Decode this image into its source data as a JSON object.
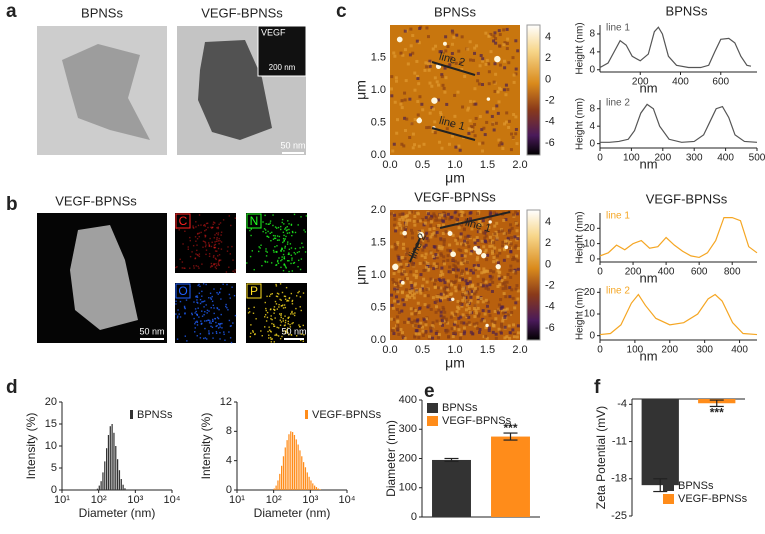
{
  "panel_labels": [
    "a",
    "b",
    "c",
    "d",
    "e",
    "f"
  ],
  "tem": {
    "titles": [
      "BPNSs",
      "VEGF-BPNSs"
    ],
    "inset_label": "VEGF",
    "inset_scale": "200 nm",
    "scale": "50 nm"
  },
  "eds": {
    "title": "VEGF-BPNSs",
    "maps": [
      "C",
      "N",
      "O",
      "P"
    ],
    "scale": "50 nm",
    "map_scale": "50 nm"
  },
  "afm": [
    {
      "title": "BPNSs",
      "xticks": [
        "0.0",
        "0.5",
        "1.0",
        "1.5",
        "2.0"
      ],
      "yticks": [
        "0.0",
        "0.5",
        "1.0",
        "1.5"
      ],
      "colorbar_ticks": [
        "4",
        "2",
        "0",
        "-2",
        "-4",
        "-6"
      ],
      "xlabel": "μm",
      "ylabel": "μm",
      "line_labels": [
        "line 2",
        "line 1"
      ]
    },
    {
      "title": "VEGF-BPNSs",
      "xticks": [
        "0.0",
        "0.5",
        "1.0",
        "1.5",
        "2.0"
      ],
      "yticks": [
        "0.0",
        "0.5",
        "1.0",
        "1.5",
        "2.0"
      ],
      "colorbar_ticks": [
        "4",
        "2",
        "0",
        "-2",
        "-4",
        "-6"
      ],
      "xlabel": "μm",
      "ylabel": "μm",
      "line_labels": [
        "line 1",
        "line 2"
      ]
    }
  ],
  "chart_data": [
    {
      "type": "line",
      "title": "BPNSs",
      "annotation": "line 1",
      "x_label": "nm",
      "y_label": "Height (nm)",
      "x": [
        0,
        40,
        70,
        100,
        130,
        160,
        200,
        240,
        270,
        290,
        310,
        340,
        380,
        440,
        500,
        540,
        570,
        600,
        640,
        670,
        700,
        730,
        750
      ],
      "series": [
        {
          "color": "#555555",
          "values": [
            0.5,
            1.5,
            4,
            6.5,
            5.5,
            3,
            2,
            3.5,
            8.5,
            9.5,
            8,
            3,
            1,
            0.5,
            0.5,
            1,
            4,
            6.8,
            7,
            6,
            3,
            1,
            0.8
          ]
        }
      ],
      "xlim": [
        0,
        780
      ],
      "ylim": [
        -0.5,
        10
      ],
      "xticks": [
        200,
        400,
        600
      ],
      "yticks": [
        0,
        4,
        8
      ]
    },
    {
      "type": "line",
      "annotation": "line 2",
      "x_label": "nm",
      "y_label": "Height (nm)",
      "x": [
        0,
        30,
        60,
        90,
        110,
        130,
        150,
        170,
        190,
        220,
        260,
        300,
        330,
        350,
        370,
        390,
        410,
        430,
        460,
        500
      ],
      "series": [
        {
          "color": "#555555",
          "values": [
            0.3,
            0.3,
            0.5,
            1,
            3,
            7,
            9,
            8,
            4,
            1,
            0.3,
            0.5,
            2,
            5,
            8,
            8.5,
            6,
            2,
            0.5,
            0.3
          ]
        }
      ],
      "xlim": [
        0,
        500
      ],
      "ylim": [
        -1,
        10
      ],
      "xticks": [
        0,
        100,
        200,
        300,
        400,
        500
      ],
      "yticks": [
        0,
        4,
        8
      ]
    },
    {
      "type": "line",
      "title": "VEGF-BPNSs",
      "annotation": "line 1",
      "x_label": "nm",
      "y_label": "Height (nm)",
      "x": [
        0,
        50,
        100,
        150,
        200,
        250,
        300,
        350,
        400,
        450,
        500,
        550,
        600,
        650,
        700,
        750,
        800,
        850,
        900,
        950
      ],
      "series": [
        {
          "color": "#f5a623",
          "values": [
            2,
            4,
            9,
            6,
            10,
            12,
            7,
            8,
            14,
            9,
            5,
            2,
            1,
            4,
            12,
            27,
            27,
            25,
            8,
            4
          ]
        }
      ],
      "xlim": [
        0,
        950
      ],
      "ylim": [
        -2,
        30
      ],
      "xticks": [
        0,
        200,
        400,
        600,
        800
      ],
      "yticks": [
        0,
        10,
        20
      ]
    },
    {
      "type": "line",
      "annotation": "line 2",
      "x_label": "nm",
      "y_label": "Height (nm)",
      "x": [
        0,
        30,
        60,
        90,
        110,
        130,
        160,
        200,
        240,
        280,
        310,
        330,
        350,
        380,
        410,
        450
      ],
      "series": [
        {
          "color": "#f5a623",
          "values": [
            0.5,
            1,
            5,
            15,
            19,
            14,
            8,
            5,
            6,
            10,
            17,
            19,
            16,
            6,
            1,
            0.5
          ]
        }
      ],
      "xlim": [
        0,
        450
      ],
      "ylim": [
        -2,
        22
      ],
      "xticks": [
        0,
        100,
        200,
        300,
        400
      ],
      "yticks": [
        0,
        10,
        20
      ]
    },
    {
      "type": "histogram",
      "x_label": "Diameter (nm)",
      "y_label": "Intensity (%)",
      "log_x": true,
      "bins": [
        89.1,
        100,
        112.2,
        125.9,
        141.3,
        158.5,
        177.8,
        199.5,
        223.9,
        251.2,
        281.8,
        316.2,
        354.8,
        398.1,
        446.7,
        501.2,
        562.3
      ],
      "series": [
        {
          "name": "BPNSs",
          "color": "#333333",
          "values": [
            0.3,
            1,
            2,
            4,
            6.5,
            9.5,
            12.5,
            14.5,
            15,
            13,
            10,
            7,
            4.5,
            2.5,
            1.2,
            0.4
          ]
        }
      ],
      "xlim": [
        10,
        10000
      ],
      "ylim": [
        0,
        20
      ],
      "xticks": [
        {
          "value": 10,
          "label": "10¹"
        },
        {
          "value": 100,
          "label": "10²"
        },
        {
          "value": 1000,
          "label": "10³"
        },
        {
          "value": 10000,
          "label": "10⁴"
        }
      ],
      "yticks": [
        0,
        5,
        10,
        15,
        20
      ]
    },
    {
      "type": "histogram",
      "x_label": "Diameter (nm)",
      "y_label": "Intensity (%)",
      "log_x": true,
      "bins": [
        100,
        112.2,
        125.9,
        141.3,
        158.5,
        177.8,
        199.5,
        223.9,
        251.2,
        281.8,
        316.2,
        354.8,
        398.1,
        446.7,
        501.2,
        562.3,
        631,
        707.9,
        794.3,
        891.3,
        1000,
        1122,
        1259,
        1413,
        1585,
        1778,
        1995
      ],
      "series": [
        {
          "name": "VEGF-BPNSs",
          "color": "#ff8c1a",
          "values": [
            0.2,
            0.6,
            1.3,
            2.2,
            3.3,
            4.6,
            5.8,
            6.8,
            7.6,
            8,
            7.9,
            7.5,
            6.9,
            6.2,
            5.4,
            4.6,
            3.8,
            3.1,
            2.4,
            1.8,
            1.3,
            0.9,
            0.6,
            0.4,
            0.2,
            0.1
          ]
        }
      ],
      "xlim": [
        10,
        10000
      ],
      "ylim": [
        0,
        12
      ],
      "xticks": [
        {
          "value": 10,
          "label": "10¹"
        },
        {
          "value": 100,
          "label": "10²"
        },
        {
          "value": 1000,
          "label": "10³"
        },
        {
          "value": 10000,
          "label": "10⁴"
        }
      ],
      "yticks": [
        0,
        4,
        8,
        12
      ]
    },
    {
      "type": "bar",
      "y_label": "Diameter (nm)",
      "legend": "top-left",
      "series": [
        {
          "name": "BPNSs",
          "color": "#333333",
          "values": [
            195
          ],
          "errors": [
            5
          ]
        },
        {
          "name": "VEGF-BPNSs",
          "color": "#ff8c1a",
          "values": [
            275
          ],
          "errors": [
            12
          ],
          "annotation": "***"
        }
      ],
      "ylim": [
        0,
        400
      ],
      "yticks": [
        0,
        100,
        200,
        300,
        400
      ]
    },
    {
      "type": "bar",
      "y_label": "Zeta Potential (mV)",
      "legend": "bottom-right",
      "series": [
        {
          "name": "BPNSs",
          "color": "#333333",
          "values": [
            -19.2
          ],
          "errors": [
            1.2
          ]
        },
        {
          "name": "VEGF-BPNSs",
          "color": "#ff8c1a",
          "values": [
            -3.8
          ],
          "errors": [
            0.6
          ],
          "annotation": "***"
        }
      ],
      "ylim": [
        -25,
        -3
      ],
      "yticks": [
        -4,
        -11,
        -18,
        -25
      ]
    }
  ]
}
